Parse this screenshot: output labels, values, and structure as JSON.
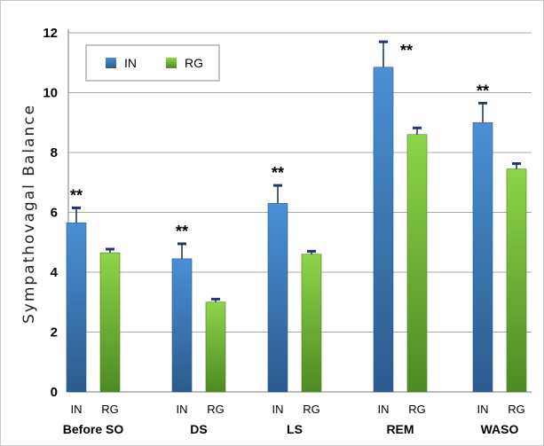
{
  "chart_data": {
    "type": "bar",
    "ylabel": "Sympathovagal Balance",
    "ylim": [
      0,
      12
    ],
    "yticks": [
      0,
      2,
      4,
      6,
      8,
      10,
      12
    ],
    "grid": true,
    "legend_position": "top-left",
    "categories": [
      "Before SO",
      "DS",
      "LS",
      "REM",
      "WASO"
    ],
    "series_short_labels": [
      "IN",
      "RG"
    ],
    "series": [
      {
        "name": "IN",
        "color": "#3a7bbf",
        "values": [
          5.65,
          4.45,
          6.3,
          10.85,
          9.0
        ],
        "errors": [
          0.5,
          0.5,
          0.6,
          0.85,
          0.65
        ]
      },
      {
        "name": "RG",
        "color": "#7cbf3c",
        "values": [
          4.65,
          3.0,
          4.6,
          8.6,
          7.45
        ],
        "errors": [
          0.12,
          0.1,
          0.1,
          0.22,
          0.18
        ]
      }
    ],
    "annotations": [
      "**",
      "**",
      "**",
      "**",
      "**"
    ]
  }
}
